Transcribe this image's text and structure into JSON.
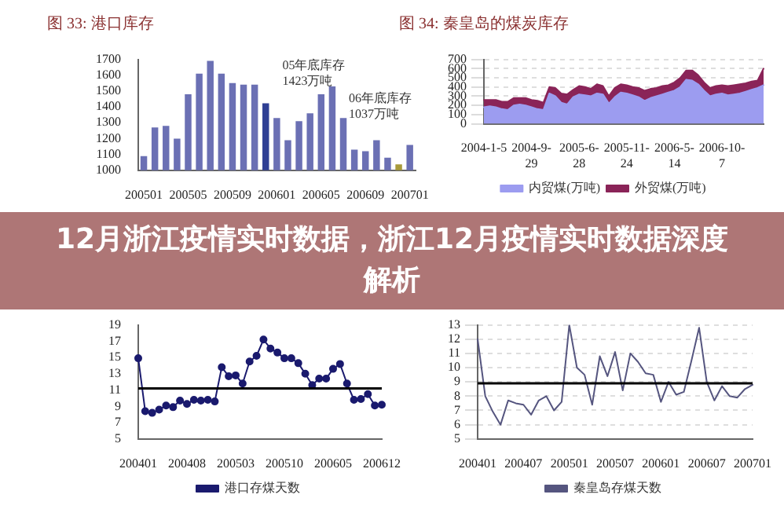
{
  "chart_data": [
    {
      "type": "bar",
      "title": "图 33: 港口库存",
      "categories": [
        "200501",
        null,
        null,
        null,
        "200505",
        null,
        null,
        null,
        "200509",
        null,
        null,
        null,
        "200601",
        null,
        null,
        null,
        "200605",
        null,
        null,
        null,
        "200609",
        null,
        null,
        null,
        "200701"
      ],
      "values": [
        1090,
        1270,
        1280,
        1200,
        1480,
        1610,
        1690,
        1610,
        1550,
        1540,
        1540,
        1423,
        1330,
        1190,
        1310,
        1360,
        1480,
        1530,
        1330,
        1130,
        1120,
        1190,
        1080,
        1037,
        1160
      ],
      "colors": [
        "#6b70b4",
        "#6b70b4",
        "#6b70b4",
        "#6b70b4",
        "#6b70b4",
        "#6b70b4",
        "#6b70b4",
        "#6b70b4",
        "#6b70b4",
        "#6b70b4",
        "#6b70b4",
        "#2f3f94",
        "#6b70b4",
        "#6b70b4",
        "#6b70b4",
        "#6b70b4",
        "#6b70b4",
        "#6b70b4",
        "#6b70b4",
        "#6b70b4",
        "#6b70b4",
        "#6b70b4",
        "#6b70b4",
        "#a89a3a",
        "#6b70b4"
      ],
      "ylim": [
        1000,
        1700
      ],
      "yticks": [
        1000,
        1100,
        1200,
        1300,
        1400,
        1500,
        1600,
        1700
      ],
      "annotations": [
        "05年底库存\n1423万吨",
        "06年底库存\n1037万吨"
      ]
    },
    {
      "type": "area",
      "stacked": true,
      "title": "图 34: 秦皇岛的煤炭库存",
      "categories": [
        "2004-1-5",
        null,
        null,
        null,
        null,
        null,
        null,
        null,
        "2004-9-29",
        null,
        null,
        null,
        null,
        null,
        null,
        null,
        "2005-6-28",
        null,
        null,
        null,
        null,
        null,
        null,
        null,
        "2005-11-24",
        null,
        null,
        null,
        null,
        null,
        null,
        null,
        "2006-5-14",
        null,
        null,
        null,
        null,
        null,
        null,
        null,
        "2006-10-7",
        null,
        null,
        null,
        null,
        null,
        null,
        null
      ],
      "series": [
        {
          "name": "内贸煤(万吨)",
          "color": "#9c9cf0",
          "values": [
            180,
            190,
            180,
            160,
            150,
            200,
            210,
            200,
            180,
            160,
            150,
            330,
            300,
            230,
            210,
            290,
            320,
            310,
            300,
            330,
            320,
            220,
            290,
            340,
            330,
            310,
            290,
            250,
            280,
            300,
            320,
            340,
            360,
            400,
            480,
            470,
            430,
            360,
            300,
            320,
            330,
            310,
            320,
            330,
            350,
            370,
            390,
            420
          ]
        },
        {
          "name": "外贸煤(万吨)",
          "color": "#8a2458",
          "values": [
            80,
            70,
            80,
            80,
            90,
            80,
            70,
            80,
            80,
            90,
            80,
            70,
            90,
            100,
            110,
            80,
            90,
            90,
            80,
            100,
            90,
            80,
            100,
            90,
            90,
            90,
            100,
            110,
            100,
            90,
            90,
            80,
            90,
            100,
            100,
            110,
            100,
            90,
            90,
            90,
            90,
            100,
            100,
            100,
            90,
            90,
            80,
            180
          ]
        }
      ],
      "ylim": [
        0,
        700
      ],
      "yticks": [
        0,
        100,
        200,
        300,
        400,
        500,
        600,
        700
      ],
      "grid": "y",
      "legend": "bottom"
    },
    {
      "type": "line",
      "marker": "circle",
      "categories": [
        "200401",
        null,
        null,
        null,
        null,
        null,
        null,
        "200408",
        null,
        null,
        null,
        null,
        null,
        null,
        "200503",
        null,
        null,
        null,
        null,
        null,
        null,
        "200510",
        null,
        null,
        null,
        null,
        null,
        null,
        "200605",
        null,
        null,
        null,
        null,
        null,
        null,
        "200612"
      ],
      "series": [
        {
          "name": "港口存煤天数",
          "color": "#1a1a6e",
          "values": [
            14.9,
            8.4,
            8.2,
            8.6,
            9.1,
            8.9,
            9.7,
            9.3,
            9.8,
            9.7,
            9.8,
            9.6,
            13.8,
            12.7,
            12.8,
            11.8,
            14.5,
            15.2,
            17.2,
            16.1,
            15.6,
            14.9,
            14.9,
            14.3,
            13.0,
            11.6,
            12.4,
            12.4,
            13.6,
            14.2,
            11.8,
            9.8,
            9.9,
            10.5,
            9.1,
            9.2
          ]
        }
      ],
      "ylim": [
        5,
        19
      ],
      "yticks": [
        5,
        7,
        9,
        11,
        13,
        15,
        17,
        19
      ],
      "ref_lines": [
        {
          "axis": "y",
          "value": 11.2,
          "color": "#000000"
        }
      ],
      "legend": "bottom"
    },
    {
      "type": "line",
      "categories": [
        "200401",
        null,
        null,
        null,
        null,
        null,
        "200407",
        null,
        null,
        null,
        null,
        null,
        "200501",
        null,
        null,
        null,
        null,
        null,
        "200507",
        null,
        null,
        null,
        null,
        null,
        "200601",
        null,
        null,
        null,
        null,
        null,
        "200607",
        null,
        null,
        null,
        null,
        null,
        "200701"
      ],
      "series": [
        {
          "name": "秦皇岛存煤天数",
          "color": "#55557f",
          "values": [
            12.0,
            8.0,
            6.9,
            6.0,
            7.7,
            7.5,
            7.4,
            6.7,
            7.7,
            8.0,
            7.0,
            7.6,
            13.0,
            10.0,
            9.5,
            7.4,
            10.8,
            9.4,
            11.1,
            8.4,
            11.0,
            10.4,
            9.6,
            9.5,
            7.6,
            9.0,
            8.1,
            8.3,
            10.5,
            12.8,
            9.0,
            7.7,
            8.7,
            8.0,
            7.9,
            8.5,
            8.8
          ]
        }
      ],
      "ylim": [
        5,
        13
      ],
      "yticks": [
        5,
        6,
        7,
        8,
        9,
        10,
        11,
        12,
        13
      ],
      "grid": "y",
      "ref_lines": [
        {
          "axis": "y",
          "value": 8.9,
          "color": "#000000"
        }
      ],
      "legend": "bottom"
    },
    {
      "type": "other",
      "title": "12月浙江疫情实时数据，浙江12月疫情实时数据深度解析"
    }
  ]
}
